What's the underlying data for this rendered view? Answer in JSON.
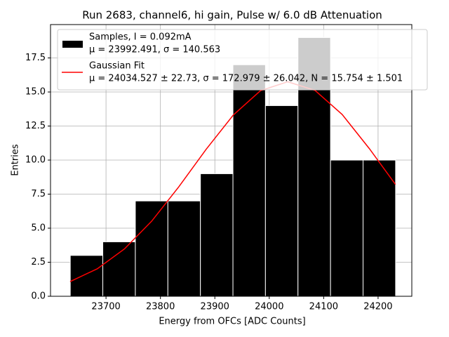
{
  "chart_data": {
    "type": "histogram",
    "title": "Run 2683, channel6, hi gain, Pulse w/ 6.0 dB Attenuation",
    "x_label": "Energy from OFCs [ADC Counts]",
    "y_label": "Entries",
    "bins": [
      23634.3,
      23694.1,
      23753.9,
      23813.7,
      23873.5,
      23933.3,
      23993.0,
      24052.8,
      24112.6,
      24172.4,
      24232.2
    ],
    "series": [
      {
        "name": "Samples, I = 0.092mA",
        "stats": "μ = 23992.491, σ = 140.563",
        "color": "#000000",
        "values": [
          3,
          4,
          7,
          7,
          9,
          17,
          14,
          19,
          10,
          10
        ]
      },
      {
        "type": "line",
        "name": "Gaussian Fit",
        "stats": "μ = 24034.527 ± 22.73, σ = 172.979 ± 26.042, N = 15.754 ± 1.501",
        "color": "#ff0000",
        "x": [
          23634,
          23684,
          23734,
          23784,
          23834,
          23884,
          23934,
          23984,
          24034,
          24084,
          24134,
          24184,
          24232
        ],
        "values": [
          1.08,
          2.02,
          3.48,
          5.52,
          8.05,
          10.79,
          13.31,
          15.1,
          15.75,
          15.12,
          13.35,
          10.84,
          8.21
        ]
      }
    ],
    "xlim": [
      23598,
      24262
    ],
    "ylim": [
      0,
      19.95
    ],
    "xticks": [
      23700,
      23800,
      23900,
      24000,
      24100,
      24200
    ],
    "yticks": [
      {
        "value": 0,
        "label": "0.0"
      },
      {
        "value": 2.5,
        "label": "2.5"
      },
      {
        "value": 5,
        "label": "5.0"
      },
      {
        "value": 7.5,
        "label": "7.5"
      },
      {
        "value": 10,
        "label": "10.0"
      },
      {
        "value": 12.5,
        "label": "12.5"
      },
      {
        "value": 15,
        "label": "15.0"
      },
      {
        "value": 17.5,
        "label": "17.5"
      }
    ],
    "grid": true,
    "legend": "upper left"
  }
}
